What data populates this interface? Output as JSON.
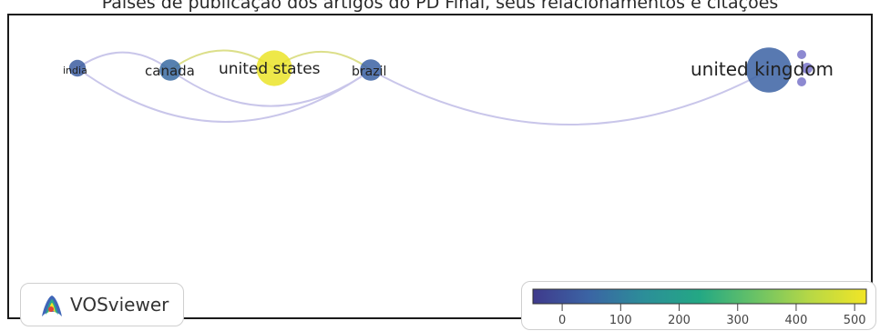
{
  "caption": "Países de publicação dos artigos do PD Final, seus relacionamentos e citações",
  "branding": {
    "label": "VOSviewer",
    "icon": "vosviewer-logo-icon"
  },
  "colors": {
    "link": "#c9c6ea",
    "link_yellow": "#dcdf8a",
    "label": "#222222"
  },
  "network": {
    "nodes": [
      {
        "label": "india",
        "weight": 2,
        "citations": 30
      },
      {
        "label": "canada",
        "weight": 3,
        "citations": 60
      },
      {
        "label": "united states",
        "weight": 6,
        "citations": 510
      },
      {
        "label": "brazil",
        "weight": 3,
        "citations": 40
      },
      {
        "label": "united kingdom",
        "weight": 8,
        "citations": 40
      }
    ],
    "links": [
      [
        "india",
        "canada"
      ],
      [
        "india",
        "brazil"
      ],
      [
        "canada",
        "united states"
      ],
      [
        "canada",
        "brazil"
      ],
      [
        "united states",
        "brazil"
      ],
      [
        "brazil",
        "united kingdom"
      ]
    ]
  },
  "legend": {
    "min": -50,
    "max": 520,
    "ticks": [
      0,
      100,
      200,
      300,
      400,
      500
    ],
    "tick_labels": [
      "0",
      "100",
      "200",
      "300",
      "400",
      "500"
    ],
    "colormap": [
      "#3f3a8c",
      "#3b64a4",
      "#2c8e99",
      "#23a884",
      "#69c266",
      "#b8d845",
      "#f1e526"
    ]
  }
}
